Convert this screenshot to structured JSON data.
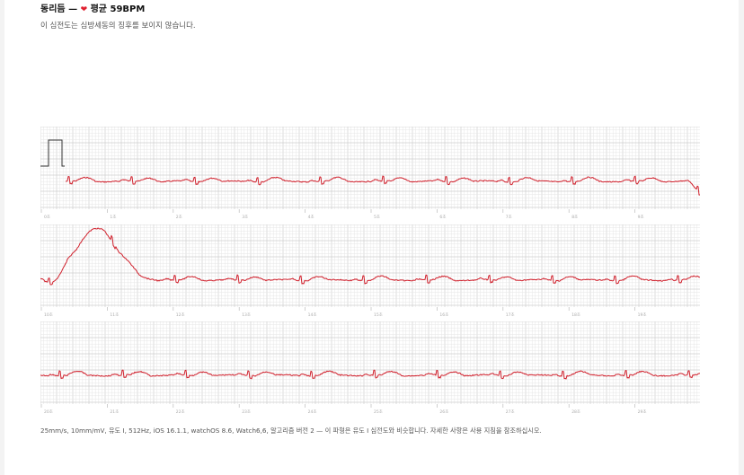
{
  "header": {
    "rhythm": "동리듬",
    "dash": "—",
    "heart_icon": "heart-icon",
    "bpm_text": "평균 59BPM",
    "description": "이 심전도는 심방세동의 징후를 보이지 않습니다."
  },
  "strips": [
    {
      "time_labels": [
        "0초",
        "1초",
        "2초",
        "3초",
        "4초",
        "5초",
        "6초",
        "7초",
        "8초",
        "9초"
      ]
    },
    {
      "time_labels": [
        "10초",
        "11초",
        "12초",
        "13초",
        "14초",
        "15초",
        "16초",
        "17초",
        "18초",
        "19초"
      ]
    },
    {
      "time_labels": [
        "20초",
        "21초",
        "22초",
        "23초",
        "24초",
        "25초",
        "26초",
        "27초",
        "28초",
        "29초"
      ]
    }
  ],
  "footer": {
    "text": "25mm/s, 10mm/mV, 유도 I, 512Hz, iOS 16.1.1, watchOS 8.6, Watch6,6, 알고리즘 버전 2 — 이 파형은 유도 I 심전도와 비슷합니다. 자세한 사항은 사용 지침을 참조하십시오."
  },
  "colors": {
    "trace": "#d0202c",
    "grid_minor": "#e6e6e6",
    "grid_major": "#cfcfcf",
    "calibration": "#333333"
  }
}
